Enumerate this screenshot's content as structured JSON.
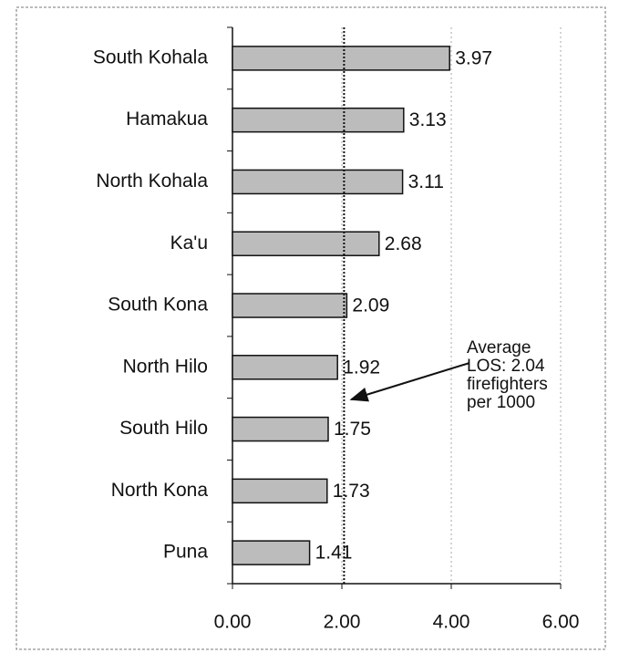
{
  "chart_data": {
    "type": "hbar",
    "categories": [
      "South Kohala",
      "Hamakua",
      "North Kohala",
      "Ka'u",
      "South Kona",
      "North Hilo",
      "South Hilo",
      "North Kona",
      "Puna"
    ],
    "values": [
      3.97,
      3.13,
      3.11,
      2.68,
      2.09,
      1.92,
      1.75,
      1.73,
      1.41
    ],
    "color": "#bcbcbc",
    "xlim": [
      0,
      6
    ],
    "xticks": [
      {
        "value": 0,
        "label": "0.00"
      },
      {
        "value": 2,
        "label": "2.00"
      },
      {
        "value": 4,
        "label": "4.00"
      },
      {
        "value": 6,
        "label": "6.00"
      }
    ],
    "grid": true,
    "reference_line": {
      "value": 2.04
    },
    "annotation": [
      "Average",
      "LOS: 2.04",
      "firefighters",
      "per 1000"
    ]
  }
}
